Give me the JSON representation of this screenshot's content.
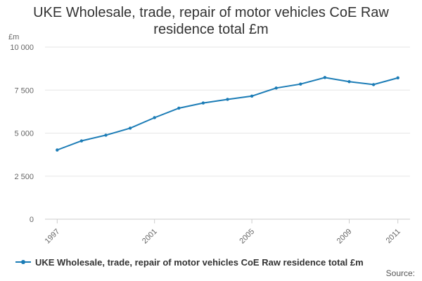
{
  "chart_data": {
    "type": "line",
    "title": "UKE Wholesale, trade, repair of motor vehicles CoE Raw residence total £m",
    "title_lines": [
      "UKE Wholesale, trade, repair of motor vehicles CoE Raw",
      "residence total £m"
    ],
    "ylabel": "£m",
    "xlabel": "",
    "ylim": [
      0,
      10000
    ],
    "yticks": [
      0,
      2500,
      5000,
      7500,
      10000
    ],
    "ytick_labels": [
      "0",
      "2 500",
      "5 000",
      "7 500",
      "10 000"
    ],
    "xticks": [
      1997,
      2001,
      2005,
      2009,
      2011
    ],
    "x": [
      1997,
      1998,
      1999,
      2000,
      2001,
      2002,
      2003,
      2004,
      2005,
      2006,
      2007,
      2008,
      2009,
      2010,
      2011
    ],
    "series": [
      {
        "name": "UKE Wholesale, trade, repair of motor vehicles CoE Raw residence total £m",
        "color": "#1b7cb6",
        "values": [
          4020,
          4550,
          4880,
          5290,
          5900,
          6450,
          6750,
          6960,
          7150,
          7620,
          7850,
          8230,
          7990,
          7820,
          8210
        ]
      }
    ],
    "grid": true,
    "legend": "bottom",
    "source_label": "Source:"
  }
}
